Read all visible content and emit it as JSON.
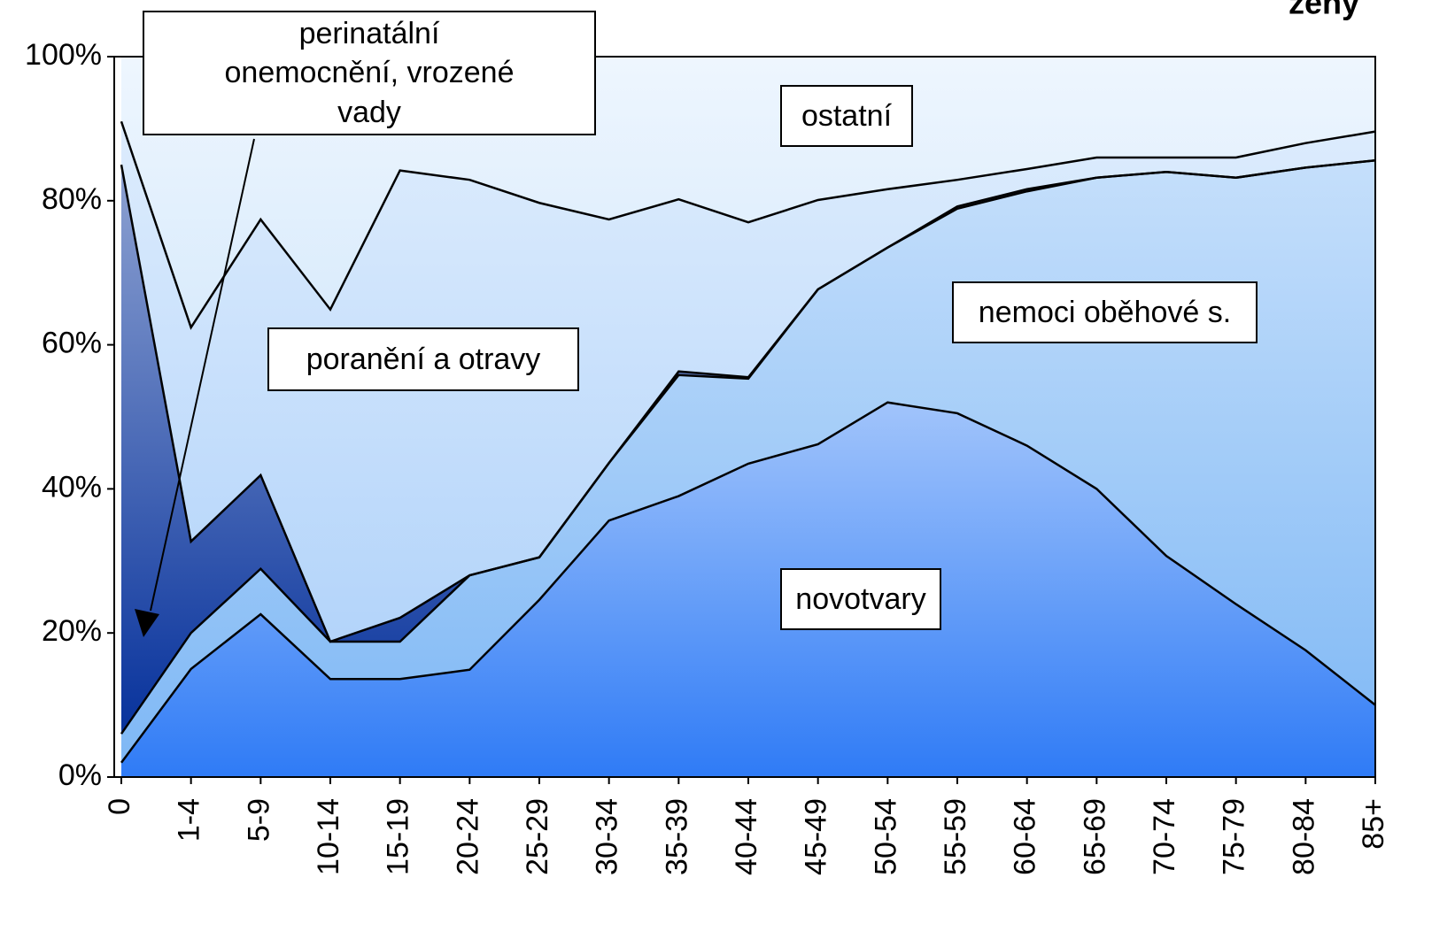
{
  "chart_data": {
    "type": "stacked_area_percent",
    "title": "ženy",
    "categories": [
      "0",
      "1-4",
      "5-9",
      "10-14",
      "15-19",
      "20-24",
      "25-29",
      "30-34",
      "35-39",
      "40-44",
      "45-49",
      "50-54",
      "55-59",
      "60-64",
      "65-69",
      "70-74",
      "75-79",
      "80-84",
      "85+"
    ],
    "series": [
      {
        "name": "novotvary",
        "color": "#2f7bf6",
        "values": [
          2,
          15,
          22.6,
          13.6,
          13.6,
          14.9,
          24.6,
          35.6,
          39,
          43.5,
          46.2,
          52,
          50.5,
          46,
          40,
          30.7,
          24,
          17.6,
          10
        ]
      },
      {
        "name": "nemoci oběhové s.",
        "color": "#7fb8f5",
        "values": [
          4,
          5,
          6.3,
          5.2,
          5.2,
          13.1,
          5.9,
          8,
          16.8,
          11.8,
          21.5,
          21.5,
          28.4,
          35.3,
          43.2,
          53.3,
          59.2,
          67,
          75.6
        ]
      },
      {
        "name": "perinatální onemocnění, vrozené vady",
        "color": "#07329c",
        "values": [
          79,
          12.7,
          13,
          0,
          3.3,
          0,
          0,
          0,
          0.5,
          0.2,
          0,
          0,
          0.3,
          0.3,
          0,
          0,
          0,
          0,
          0
        ]
      },
      {
        "name": "poranění a otravy",
        "color": "#b3d4fa",
        "values": [
          6,
          29.7,
          35.5,
          46.1,
          62.1,
          54.9,
          49.2,
          33.8,
          23.9,
          21.5,
          12.4,
          8.1,
          3.7,
          2.8,
          2.8,
          2,
          2.8,
          3.4,
          4
        ]
      },
      {
        "name": "ostatní",
        "color": "#d9ebfc",
        "values": [
          9,
          37.6,
          22.6,
          35.1,
          15.8,
          17.1,
          20.3,
          22.6,
          19.8,
          23,
          19.9,
          18.4,
          17.1,
          15.6,
          14,
          14,
          14,
          12,
          10.4
        ]
      }
    ],
    "ylim": [
      0,
      100
    ],
    "yticks": [
      {
        "value": 0,
        "label": "0%"
      },
      {
        "value": 20,
        "label": "20%"
      },
      {
        "value": 40,
        "label": "40%"
      },
      {
        "value": 60,
        "label": "60%"
      },
      {
        "value": 80,
        "label": "80%"
      },
      {
        "value": 100,
        "label": "100%"
      }
    ]
  }
}
